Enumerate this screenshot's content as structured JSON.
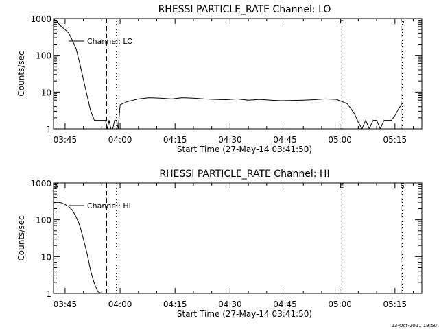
{
  "footer": {
    "timestamp": "23-Oct-2021 19:50"
  },
  "chart_data": [
    {
      "type": "line",
      "title": "RHESSI PARTICLE_RATE Channel: LO",
      "xlabel": "Start Time (27-May-14 03:41:50)",
      "ylabel": "Counts/sec",
      "y_scale": "log",
      "xlim": [
        "03:41:50",
        "05:22:20"
      ],
      "ylim": [
        1,
        1000
      ],
      "x_ticks": [
        "03:45",
        "04:00",
        "04:15",
        "04:30",
        "04:45",
        "05:00",
        "05:15"
      ],
      "y_ticks": [
        "1",
        "10",
        "100",
        "1000"
      ],
      "legend": {
        "label": "Channel: LO",
        "placement": "upper-left"
      },
      "markers": [
        {
          "time": "03:42:30",
          "label": "S",
          "style": "dotted"
        },
        {
          "time": "03:56:20",
          "label": "",
          "style": "dashed"
        },
        {
          "time": "03:59:00",
          "label": "",
          "style": "dotted"
        },
        {
          "time": "05:00:30",
          "label": "E",
          "style": "dotted"
        },
        {
          "time": "05:16:40",
          "label": "",
          "style": "dashed"
        },
        {
          "time": "05:17:00",
          "label": "S",
          "style": "dotted"
        }
      ],
      "series": [
        {
          "x": [
            "03:41:50",
            "03:43:00",
            "03:44:00",
            "03:45:00",
            "03:46:00",
            "03:47:00",
            "03:48:00",
            "03:49:00",
            "03:50:00",
            "03:51:00",
            "03:52:00",
            "03:53:00",
            "03:54:00",
            "03:55:00",
            "03:56:00",
            "03:56:30",
            "03:57:00",
            "03:57:30",
            "03:58:00",
            "03:58:30",
            "03:59:00",
            "03:59:30",
            "04:00:00",
            "04:02:00",
            "04:05:00",
            "04:08:00",
            "04:11:00",
            "04:14:00",
            "04:17:00",
            "04:20:00",
            "04:23:00",
            "04:26:00",
            "04:29:00",
            "04:32:00",
            "04:35:00",
            "04:38:00",
            "04:41:00",
            "04:44:00",
            "04:47:00",
            "04:50:00",
            "04:53:00",
            "04:56:00",
            "04:59:00",
            "05:00:30",
            "05:02:00",
            "05:03:00",
            "05:04:00",
            "05:05:00",
            "05:06:00",
            "05:07:00",
            "05:08:00",
            "05:09:00",
            "05:10:00",
            "05:11:00",
            "05:12:00",
            "05:13:00",
            "05:14:00",
            "05:15:00",
            "05:16:00",
            "05:17:00"
          ],
          "y": [
            800,
            760,
            600,
            500,
            400,
            250,
            150,
            60,
            22,
            8,
            3,
            1.7,
            1.7,
            1.7,
            1.7,
            1,
            1.7,
            1,
            1,
            1.7,
            1.7,
            1,
            4.5,
            5.5,
            6.5,
            7,
            6.8,
            6.5,
            7,
            6.8,
            6.5,
            6.3,
            6.2,
            6.5,
            6,
            6.3,
            6,
            5.8,
            5.9,
            6,
            6.2,
            6.5,
            6.3,
            5.5,
            4.8,
            3.5,
            2.5,
            1.5,
            1,
            1.7,
            1,
            1.7,
            1.7,
            1,
            1.7,
            1.7,
            1.7,
            2.3,
            3.5,
            5
          ]
        }
      ]
    },
    {
      "type": "line",
      "title": "RHESSI PARTICLE_RATE Channel: HI",
      "xlabel": "Start Time (27-May-14 03:41:50)",
      "ylabel": "Counts/sec",
      "y_scale": "log",
      "xlim": [
        "03:41:50",
        "05:22:20"
      ],
      "ylim": [
        1,
        1000
      ],
      "x_ticks": [
        "03:45",
        "04:00",
        "04:15",
        "04:30",
        "04:45",
        "05:00",
        "05:15"
      ],
      "y_ticks": [
        "1",
        "10",
        "100",
        "1000"
      ],
      "legend": {
        "label": "Channel: HI",
        "placement": "upper-left"
      },
      "markers": [
        {
          "time": "03:42:30",
          "label": "S",
          "style": "dotted"
        },
        {
          "time": "03:56:20",
          "label": "",
          "style": "dashed"
        },
        {
          "time": "03:59:00",
          "label": "",
          "style": "dotted"
        },
        {
          "time": "05:00:30",
          "label": "E",
          "style": "dotted"
        },
        {
          "time": "05:16:40",
          "label": "",
          "style": "dashed"
        },
        {
          "time": "05:17:00",
          "label": "S",
          "style": "dotted"
        }
      ],
      "series": [
        {
          "x": [
            "03:41:50",
            "03:43:00",
            "03:44:00",
            "03:45:00",
            "03:46:00",
            "03:47:00",
            "03:48:00",
            "03:49:00",
            "03:50:00",
            "03:51:00",
            "03:52:00",
            "03:53:00",
            "03:54:00",
            "03:55:00"
          ],
          "y": [
            290,
            300,
            290,
            260,
            230,
            180,
            120,
            70,
            30,
            12,
            4,
            1.8,
            1.1,
            1
          ]
        }
      ]
    }
  ]
}
